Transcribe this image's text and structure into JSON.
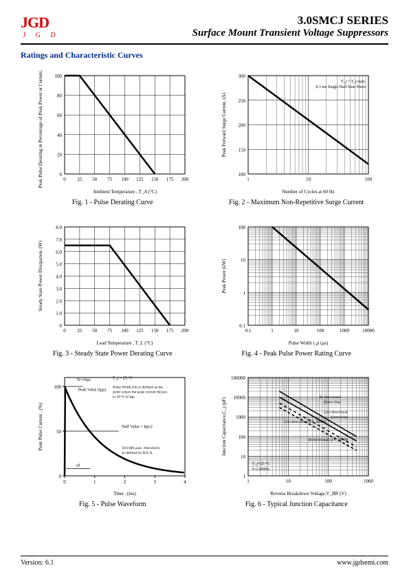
{
  "header": {
    "logo_text": "JGD",
    "logo_sub": "J G D",
    "series_title": "3.0SMCJ SERIES",
    "series_subtitle": "Surface Mount Transient Voltage Suppressors"
  },
  "section_title": "Ratings and Characteristic Curves",
  "footer": {
    "version_label": "Version: 6.1",
    "url": "www.jgdsemi.com"
  },
  "charts": {
    "fig1": {
      "type": "line",
      "caption": "Fig. 1 - Pulse Derating Curve",
      "xlabel": "Ambient Temperature , T_A  (°C)",
      "ylabel": "Peak Pulse Derating in Percentage of Peak Power or Current, (%)",
      "xlim": [
        0,
        200
      ],
      "ylim": [
        0,
        100
      ],
      "xticks": [
        0,
        25,
        50,
        75,
        100,
        125,
        150,
        175,
        200
      ],
      "yticks": [
        0,
        20,
        40,
        60,
        80,
        100
      ],
      "data": [
        [
          0,
          100
        ],
        [
          25,
          100
        ],
        [
          150,
          0
        ]
      ],
      "line_color": "#000000",
      "line_width": 2.5,
      "grid_color": "#000000",
      "background_color": "#ffffff",
      "label_fontsize": 7
    },
    "fig2": {
      "type": "line-logx",
      "caption": "Fig. 2 - Maximum Non-Repetitive Surge Current",
      "xlabel": "Number of Cycles at 60 Hz",
      "ylabel": "Peak Forward Surge Current, (A)",
      "xlim": [
        1,
        100
      ],
      "ylim": [
        100,
        300
      ],
      "yticks": [
        100,
        150,
        200,
        250,
        300
      ],
      "xticks_log": [
        1,
        10,
        100
      ],
      "data": [
        [
          1,
          300
        ],
        [
          100,
          120
        ]
      ],
      "note": "T_j = T_j max.\n8.3 ms Single Half Sine-Wave",
      "line_color": "#000000",
      "line_width": 2.5,
      "grid_color": "#000000",
      "label_fontsize": 7
    },
    "fig3": {
      "type": "line",
      "caption": "Fig. 3 - Steady State Power Derating Curve",
      "xlabel": "Lead Temperature , T_L  (°C)",
      "ylabel": "Steady State Power Dissipation, (W)",
      "xlim": [
        0,
        200
      ],
      "ylim": [
        0,
        8
      ],
      "xticks": [
        0,
        25,
        50,
        75,
        100,
        125,
        150,
        175,
        200
      ],
      "yticks": [
        0,
        1,
        2,
        3,
        4,
        5,
        6,
        7,
        8
      ],
      "ytick_labels": [
        "0",
        "1.0",
        "2.0",
        "3.0",
        "4.0",
        "5.0",
        "6.0",
        "7.0",
        "8.0"
      ],
      "data": [
        [
          0,
          6.5
        ],
        [
          75,
          6.5
        ],
        [
          175,
          0
        ]
      ],
      "line_color": "#000000",
      "line_width": 2.5,
      "grid_color": "#000000",
      "label_fontsize": 7
    },
    "fig4": {
      "type": "line-loglog",
      "caption": "Fig. 4 - Peak Pulse Power Rating Curve",
      "xlabel": "Pulse Width t_p (μs)",
      "ylabel": "Peak Power  (kW)",
      "xlim": [
        0.1,
        10000
      ],
      "ylim": [
        0.1,
        100
      ],
      "xticks_log": [
        0.1,
        1,
        10,
        100,
        1000,
        10000
      ],
      "yticks_log": [
        0.1,
        1,
        10,
        100
      ],
      "data": [
        [
          1,
          100
        ],
        [
          10000,
          0.3
        ]
      ],
      "line_color": "#000000",
      "line_width": 2.5,
      "grid_color": "#000000",
      "label_fontsize": 7
    },
    "fig5": {
      "type": "waveform",
      "caption": "Fig. 5 - Pulse Waveform",
      "xlabel": "Time , (ms)",
      "ylabel": "Peak Pulse Current , (%)",
      "xlim": [
        0,
        4
      ],
      "ylim": [
        0,
        110
      ],
      "xticks": [
        0,
        1,
        2,
        3,
        4
      ],
      "yticks": [
        0,
        50,
        100
      ],
      "annotations": {
        "tr": "Tr=10μs",
        "peak": "Peak Value (Ipp)",
        "tj": "T_j = 25 °C",
        "pw": "Pulse Width (td) is defined as the point where the peak current decays to 50 % of Ipp",
        "half": "Half Value = Ipp/2",
        "rea": "10/1000 μsec. Waveform as defined by R.E.A.",
        "td": "td"
      },
      "line_color": "#000000",
      "line_width": 2.5,
      "label_fontsize": 7
    },
    "fig6": {
      "type": "line-loglog-multi",
      "caption": "Fig. 6 - Typical Junction Capacitance",
      "xlabel": "Reverse Breakdown Voltage,V_BR (V)",
      "ylabel": "Junction Capacitance,C_j (pF)",
      "xlim": [
        1,
        1000
      ],
      "ylim": [
        1,
        100000
      ],
      "xticks_log": [
        1,
        10,
        100,
        1000
      ],
      "yticks_log": [
        1,
        10,
        100,
        1000,
        10000,
        100000
      ],
      "series": [
        {
          "label": "Bi-directional @zero bias",
          "dash": "none",
          "data": [
            [
              6,
              20000
            ],
            [
              500,
              100
            ]
          ]
        },
        {
          "label": "Uni-directional @zero bias",
          "dash": "none",
          "data": [
            [
              6,
              10000
            ],
            [
              500,
              60
            ]
          ]
        },
        {
          "label": "Uni-directional @V_RWM",
          "dash": "4,4",
          "data": [
            [
              6,
              5000
            ],
            [
              500,
              30
            ]
          ]
        },
        {
          "label": "Bi-directional @V_RWM",
          "dash": "4,3",
          "data": [
            [
              6,
              3000
            ],
            [
              500,
              20
            ]
          ]
        }
      ],
      "note": "T_j=25 °C\nf=1.0MHz",
      "line_color": "#000000",
      "line_width": 1.6,
      "grid_color": "#000000",
      "label_fontsize": 7
    }
  }
}
